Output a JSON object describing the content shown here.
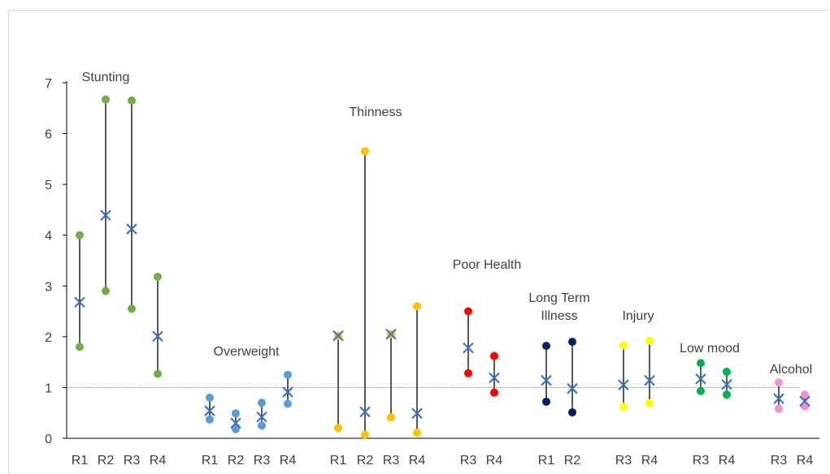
{
  "chart_data": {
    "type": "scatter",
    "title": "",
    "xlabel": "",
    "ylabel": "",
    "ylim": [
      0,
      7
    ],
    "yticks": [
      0,
      1,
      2,
      3,
      4,
      5,
      6,
      7
    ],
    "reference_line_y": 1,
    "grid": false,
    "legend": "none",
    "colors": {
      "stunting": "#70ad47",
      "overweight": "#5b9bd5",
      "thinness": "#ffc000",
      "poor_health": "#ff0000",
      "long_term_illness": "#002060",
      "injury": "#ffff00",
      "low_mood": "#00b050",
      "alcohol": "#f48fd0",
      "estimate_marker": "#4472c4",
      "range_line": "#000000",
      "reference_line": "#808080"
    },
    "groups": [
      {
        "label": [
          "Stunting"
        ],
        "color_key": "stunting",
        "items": [
          {
            "round": "R1",
            "low": 1.8,
            "high": 4.0,
            "estimate": 2.68
          },
          {
            "round": "R2",
            "low": 2.9,
            "high": 6.67,
            "estimate": 4.39
          },
          {
            "round": "R3",
            "low": 2.55,
            "high": 6.65,
            "estimate": 4.12
          },
          {
            "round": "R4",
            "low": 1.27,
            "high": 3.18,
            "estimate": 2.01
          }
        ]
      },
      {
        "label": [
          "Overweight"
        ],
        "color_key": "overweight",
        "items": [
          {
            "round": "R1",
            "low": 0.37,
            "high": 0.8,
            "estimate": 0.54
          },
          {
            "round": "R2",
            "low": 0.18,
            "high": 0.49,
            "estimate": 0.3
          },
          {
            "round": "R3",
            "low": 0.25,
            "high": 0.7,
            "estimate": 0.42
          },
          {
            "round": "R4",
            "low": 0.68,
            "high": 1.25,
            "estimate": 0.91
          }
        ]
      },
      {
        "label": [
          "Thinness"
        ],
        "color_key": "thinness",
        "items": [
          {
            "round": "R1",
            "low": 0.2,
            "high": 2.02,
            "estimate": 2.02
          },
          {
            "round": "R2",
            "low": 0.07,
            "high": 5.65,
            "estimate": 0.52
          },
          {
            "round": "R3",
            "low": 0.41,
            "high": 2.05,
            "estimate": 2.05
          },
          {
            "round": "R4",
            "low": 0.11,
            "high": 2.6,
            "estimate": 0.49
          }
        ]
      },
      {
        "label": [
          "Poor Health"
        ],
        "color_key": "poor_health",
        "items": [
          {
            "round": "R3",
            "low": 1.28,
            "high": 2.5,
            "estimate": 1.78
          },
          {
            "round": "R4",
            "low": 0.9,
            "high": 1.62,
            "estimate": 1.19
          }
        ]
      },
      {
        "label": [
          "Long Term",
          "Illness"
        ],
        "color_key": "long_term_illness",
        "items": [
          {
            "round": "R1",
            "low": 0.72,
            "high": 1.82,
            "estimate": 1.14
          },
          {
            "round": "R2",
            "low": 0.51,
            "high": 1.9,
            "estimate": 0.98
          }
        ]
      },
      {
        "label": [
          "Injury"
        ],
        "color_key": "injury",
        "items": [
          {
            "round": "R3",
            "low": 0.62,
            "high": 1.83,
            "estimate": 1.05
          },
          {
            "round": "R4",
            "low": 0.69,
            "high": 1.92,
            "estimate": 1.14
          }
        ]
      },
      {
        "label": [
          "Low mood"
        ],
        "color_key": "low_mood",
        "items": [
          {
            "round": "R3",
            "low": 0.93,
            "high": 1.48,
            "estimate": 1.17
          },
          {
            "round": "R4",
            "low": 0.86,
            "high": 1.31,
            "estimate": 1.06
          }
        ]
      },
      {
        "label": [
          "Alcohol"
        ],
        "color_key": "alcohol",
        "items": [
          {
            "round": "R3",
            "low": 0.58,
            "high": 1.1,
            "estimate": 0.78
          },
          {
            "round": "R4",
            "low": 0.63,
            "high": 0.86,
            "estimate": 0.73
          }
        ]
      }
    ]
  }
}
